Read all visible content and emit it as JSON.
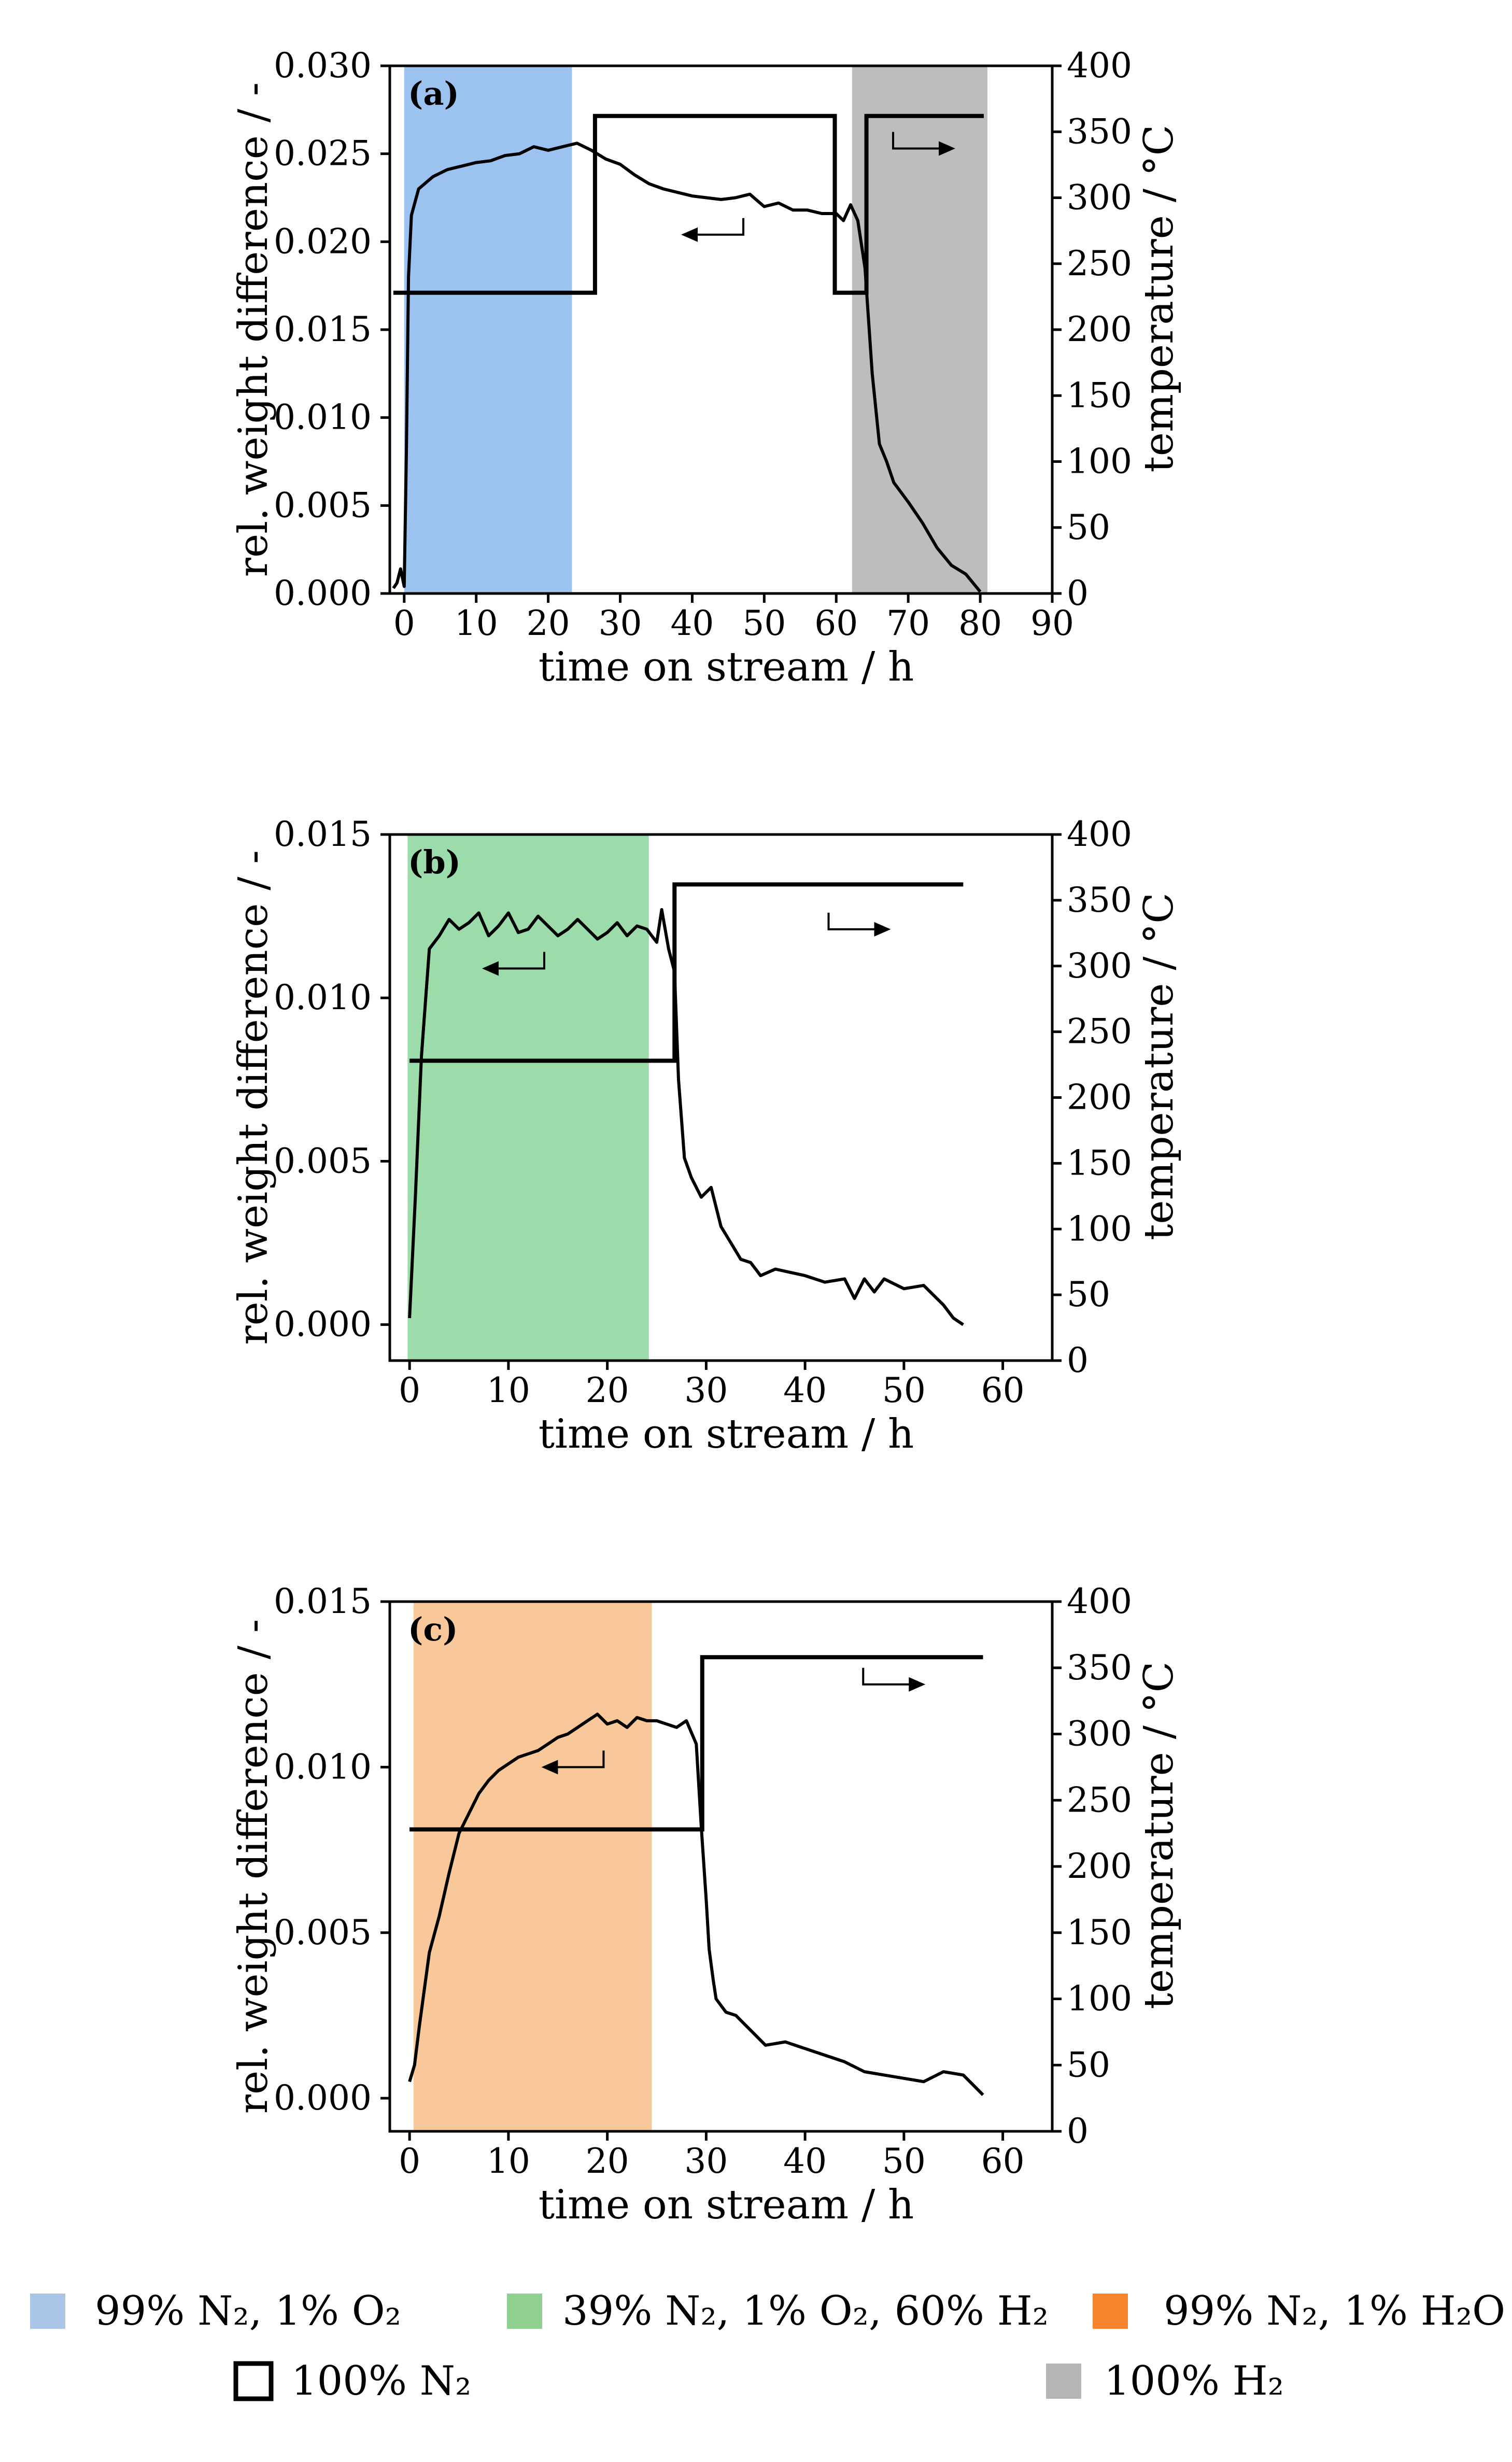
{
  "colors": {
    "o2": "#9cc3f0",
    "o2_h2": "#9bdcaa",
    "h2o": "#f8c79a",
    "h2": "#bdbdbd",
    "legend_o2": "#a9c6e8",
    "legend_o2_h2": "#8fd08f",
    "legend_h2o": "#f7852e",
    "legend_h2": "#b5b5b5"
  },
  "chart_data": [
    {
      "type": "line",
      "panel_label": "(a)",
      "xlabel": "time on stream / h",
      "ylabel": "rel. weight difference / -",
      "y2label": "temperature / °C",
      "xlim": [
        -2,
        90
      ],
      "ylim": [
        0,
        0.03
      ],
      "y2lim": [
        0,
        400
      ],
      "xticks": [
        0,
        10,
        20,
        30,
        40,
        50,
        60,
        70,
        80,
        90
      ],
      "yticks": [
        "0.000",
        "0.005",
        "0.010",
        "0.015",
        "0.020",
        "0.025",
        "0.030"
      ],
      "y2ticks": [
        0,
        50,
        100,
        150,
        200,
        250,
        300,
        350,
        400
      ],
      "shaded": [
        {
          "atmosphere": "99% N2, 1% O2",
          "color": "o2",
          "x0": 0,
          "x1": 23.3
        },
        {
          "atmosphere": "100% H2",
          "color": "h2",
          "x0": 62.2,
          "x1": 81
        }
      ],
      "series": [
        {
          "name": "rel. weight difference",
          "axis": "left",
          "x": [
            -1.5,
            -1,
            -0.5,
            0,
            0.3,
            0.6,
            1,
            2,
            4,
            6,
            8,
            10,
            12,
            14,
            16,
            18,
            20,
            22,
            24,
            26,
            28,
            30,
            32,
            34,
            36,
            38,
            40,
            42,
            44,
            46,
            48,
            50,
            52,
            54,
            56,
            58,
            60,
            61,
            62,
            63,
            64,
            65,
            66,
            67,
            68,
            70,
            72,
            74,
            76,
            78,
            80
          ],
          "y": [
            0.0003,
            0.0006,
            0.0014,
            0.0004,
            0.008,
            0.018,
            0.0215,
            0.023,
            0.0237,
            0.0241,
            0.0243,
            0.0245,
            0.0246,
            0.0249,
            0.025,
            0.0254,
            0.0252,
            0.0254,
            0.0256,
            0.0252,
            0.0247,
            0.0244,
            0.0238,
            0.0233,
            0.023,
            0.0228,
            0.0226,
            0.0225,
            0.0224,
            0.0225,
            0.0227,
            0.022,
            0.0222,
            0.0218,
            0.0218,
            0.0216,
            0.0216,
            0.0212,
            0.0221,
            0.0212,
            0.0185,
            0.0125,
            0.0085,
            0.0075,
            0.0063,
            0.0052,
            0.004,
            0.0026,
            0.0016,
            0.0011,
            0.0001
          ]
        },
        {
          "name": "temperature",
          "axis": "right",
          "x": [
            -1.5,
            26.5,
            26.5,
            59.8,
            59.8,
            64.2,
            64.2,
            80.5
          ],
          "y": [
            228,
            228,
            362,
            362,
            228,
            228,
            362,
            362
          ]
        }
      ],
      "arrows": [
        {
          "x": 43.5,
          "y": 0.0204,
          "dir": "left"
        },
        {
          "x": 71.5,
          "y": 0.0253,
          "dir": "right"
        }
      ]
    },
    {
      "type": "line",
      "panel_label": "(b)",
      "xlabel": "time on stream / h",
      "ylabel": "rel. weight difference / -",
      "y2label": "temperature / °C",
      "xlim": [
        -2,
        65
      ],
      "ylim": [
        -0.0011,
        0.015
      ],
      "y2lim": [
        0,
        400
      ],
      "xticks": [
        0,
        10,
        20,
        30,
        40,
        50,
        60
      ],
      "yticks": [
        "0.000",
        "0.005",
        "0.010",
        "0.015"
      ],
      "y2ticks": [
        0,
        50,
        100,
        150,
        200,
        250,
        300,
        350,
        400
      ],
      "shaded": [
        {
          "atmosphere": "39% N2, 1% O2, 60% H2",
          "color": "o2_h2",
          "x0": -0.2,
          "x1": 24.2
        }
      ],
      "series": [
        {
          "name": "rel. weight difference",
          "axis": "left",
          "x": [
            0,
            0.6,
            1.2,
            2,
            3,
            4,
            5,
            6,
            7,
            8,
            9,
            10,
            11,
            12,
            13,
            14,
            15,
            16,
            17,
            18,
            19,
            20,
            21,
            22,
            23,
            24,
            25,
            25.5,
            26.2,
            26.8,
            27.2,
            27.8,
            28.5,
            29.5,
            30.5,
            31.5,
            32.5,
            33.5,
            34.5,
            35.5,
            37,
            38.5,
            40,
            42,
            44,
            45,
            46,
            47,
            48,
            50,
            52,
            53,
            54,
            55,
            56
          ],
          "y": [
            0.0002,
            0.004,
            0.0082,
            0.0115,
            0.0119,
            0.0124,
            0.0121,
            0.0123,
            0.0126,
            0.0119,
            0.0122,
            0.0126,
            0.012,
            0.0121,
            0.0125,
            0.0122,
            0.0119,
            0.0121,
            0.0124,
            0.0121,
            0.0118,
            0.012,
            0.0123,
            0.0119,
            0.0122,
            0.0121,
            0.0117,
            0.0127,
            0.0115,
            0.0108,
            0.0075,
            0.0051,
            0.0045,
            0.0039,
            0.0042,
            0.003,
            0.0025,
            0.002,
            0.0019,
            0.0015,
            0.0017,
            0.0016,
            0.0015,
            0.0013,
            0.0014,
            0.0008,
            0.0014,
            0.001,
            0.0014,
            0.0011,
            0.0012,
            0.0009,
            0.0006,
            0.0002,
            0.0
          ]
        },
        {
          "name": "temperature",
          "axis": "right",
          "x": [
            0,
            26.8,
            26.8,
            56
          ],
          "y": [
            228,
            228,
            362,
            362
          ]
        }
      ],
      "arrows": [
        {
          "x": 11,
          "y": 0.0109,
          "dir": "left"
        },
        {
          "x": 45,
          "y": 0.0121,
          "dir": "right"
        }
      ]
    },
    {
      "type": "line",
      "panel_label": "(c)",
      "xlabel": "time on stream / h",
      "ylabel": "rel. weight difference / -",
      "y2label": "temperature / °C",
      "xlim": [
        -2,
        65
      ],
      "ylim": [
        -0.001,
        0.015
      ],
      "y2lim": [
        0,
        400
      ],
      "xticks": [
        0,
        10,
        20,
        30,
        40,
        50,
        60
      ],
      "yticks": [
        "0.000",
        "0.005",
        "0.010",
        "0.015"
      ],
      "y2ticks": [
        0,
        50,
        100,
        150,
        200,
        250,
        300,
        350,
        400
      ],
      "shaded": [
        {
          "atmosphere": "99% N2, 1% H2O",
          "color": "h2o",
          "x0": 0.4,
          "x1": 24.5
        }
      ],
      "series": [
        {
          "name": "rel. weight difference",
          "axis": "left",
          "x": [
            0,
            0.5,
            1,
            2,
            3,
            4,
            5,
            6,
            7,
            8,
            9,
            10,
            11,
            12,
            13,
            14,
            15,
            16,
            17,
            18,
            19,
            20,
            21,
            22,
            23,
            24,
            25,
            26,
            27,
            28,
            29,
            29.5,
            30,
            30.3,
            30.7,
            31,
            32,
            33,
            34,
            35,
            36,
            38,
            40,
            42,
            44,
            46,
            48,
            50,
            52,
            54,
            56,
            58
          ],
          "y": [
            0.0005,
            0.001,
            0.0022,
            0.0044,
            0.0055,
            0.0068,
            0.008,
            0.0086,
            0.0092,
            0.0096,
            0.0099,
            0.0101,
            0.0103,
            0.0104,
            0.0105,
            0.0107,
            0.0109,
            0.011,
            0.0112,
            0.0114,
            0.0116,
            0.0113,
            0.0114,
            0.0112,
            0.0115,
            0.0114,
            0.0114,
            0.0113,
            0.0112,
            0.0114,
            0.0107,
            0.0082,
            0.006,
            0.0045,
            0.0036,
            0.003,
            0.0026,
            0.0025,
            0.0022,
            0.0019,
            0.0016,
            0.0017,
            0.0015,
            0.0013,
            0.0011,
            0.0008,
            0.0007,
            0.0006,
            0.0005,
            0.0008,
            0.0007,
            0.0001
          ]
        },
        {
          "name": "temperature",
          "axis": "right",
          "x": [
            0,
            29.6,
            29.6,
            58
          ],
          "y": [
            228,
            228,
            358,
            358
          ]
        }
      ],
      "arrows": [
        {
          "x": 17,
          "y": 0.01,
          "dir": "left"
        },
        {
          "x": 48.5,
          "y": 0.0125,
          "dir": "right"
        }
      ]
    }
  ],
  "legend": [
    {
      "text": "99% N₂, 1% O₂",
      "color": "legend_o2"
    },
    {
      "text": "39% N₂, 1% O₂, 60% H₂",
      "color": "legend_o2_h2"
    },
    {
      "text": "99% N₂, 1% H₂O",
      "color": "legend_h2o"
    },
    {
      "text": "100% N₂",
      "color": "outline"
    },
    {
      "text": "100% H₂",
      "color": "legend_h2"
    }
  ]
}
